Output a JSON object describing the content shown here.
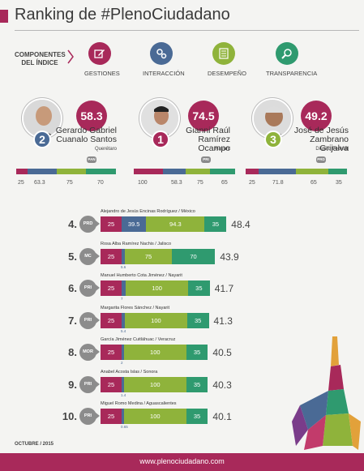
{
  "header": {
    "title": "Ranking de #PlenoCiudadano"
  },
  "components": {
    "label": "COMPONENTES DEL ÍNDICE",
    "items": [
      {
        "name": "GESTIONES",
        "color": "#a8295a",
        "icon": "edit-icon"
      },
      {
        "name": "INTERACCIÓN",
        "color": "#4a6a95",
        "icon": "gears-icon"
      },
      {
        "name": "DESEMPEÑO",
        "color": "#8fb33b",
        "icon": "checklist-icon"
      },
      {
        "name": "TRANSPARENCIA",
        "color": "#2f9a6f",
        "icon": "magnifier-icon"
      }
    ]
  },
  "candidates": [
    {
      "rank": "2",
      "rank_color": "#4a6a95",
      "score": "58.3",
      "name_line1": "Gerardo Gabriel",
      "name_line2": "Cuanalo Santos",
      "state": "Querétaro",
      "party": "PAN",
      "components": [
        "25",
        "63.3",
        "75",
        "70"
      ]
    },
    {
      "rank": "1",
      "rank_color": "#a8295a",
      "score": "74.5",
      "name_line1": "Gianni Raúl",
      "name_line2": "Ramírez Ocampo",
      "state": "Nayarit",
      "party": "PRI",
      "components": [
        "100",
        "58.3",
        "75",
        "65"
      ]
    },
    {
      "rank": "3",
      "rank_color": "#8fb33b",
      "score": "49.2",
      "name_line1": "José de Jesús",
      "name_line2": "Zambrano Grijalva",
      "state": "Distrito Federal",
      "party": "PRD",
      "components": [
        "25",
        "71.8",
        "65",
        "35"
      ]
    }
  ],
  "chart_data": {
    "type": "bar",
    "stacked": true,
    "series": [
      {
        "name": "Gestiones",
        "color": "#a8295a"
      },
      {
        "name": "Interacción",
        "color": "#4a6a95"
      },
      {
        "name": "Desempeño",
        "color": "#8fb33b"
      },
      {
        "name": "Transparencia",
        "color": "#2f9a6f"
      }
    ],
    "rows": [
      {
        "rank": "4.",
        "name": "Alejandro de Jesús Encinas Rodríguez / México",
        "party": "PRD",
        "values": [
          25,
          39.5,
          94.3,
          35
        ],
        "labels": [
          "25",
          "39.5",
          "94.3",
          "35"
        ],
        "total": "48.4"
      },
      {
        "rank": "5.",
        "name": "Rosa Alba Ramírez Nachis / Jalisco",
        "party": "MC",
        "values": [
          25,
          5.6,
          75,
          70
        ],
        "labels": [
          "25",
          "5.6",
          "75",
          "70"
        ],
        "total": "43.9"
      },
      {
        "rank": "6.",
        "name": "Manuel Humberto Cota Jiménez / Nayarit",
        "party": "PRI",
        "values": [
          25,
          7,
          100,
          35
        ],
        "labels": [
          "25",
          "7",
          "100",
          "35"
        ],
        "total": "41.7"
      },
      {
        "rank": "7.",
        "name": "Margarita Flores Sánchez / Nayarit",
        "party": "PRI",
        "values": [
          25,
          5.4,
          100,
          35
        ],
        "labels": [
          "25",
          "5.4",
          "100",
          "35"
        ],
        "total": "41.3"
      },
      {
        "rank": "8.",
        "name": "García Jiménez Cuitláhuac / Veracruz",
        "party": "MOR",
        "values": [
          25,
          2,
          100,
          35
        ],
        "labels": [
          "25",
          "2",
          "100",
          "35"
        ],
        "total": "40.5"
      },
      {
        "rank": "9.",
        "name": "Anabel Acosta Islas / Sonora",
        "party": "PRI",
        "values": [
          25,
          1.4,
          100,
          35
        ],
        "labels": [
          "25",
          "1.4",
          "100",
          "35"
        ],
        "total": "40.3"
      },
      {
        "rank": "10.",
        "name": "Miguel Romo Medina / Aguascalientes",
        "party": "PRI",
        "values": [
          25,
          0.65,
          100,
          35
        ],
        "labels": [
          "25",
          "0.65",
          "100",
          "35"
        ],
        "total": "40.1"
      }
    ]
  },
  "footer": {
    "date": "OCTUBRE / 2015",
    "url": "www.plenociudadano.com"
  }
}
